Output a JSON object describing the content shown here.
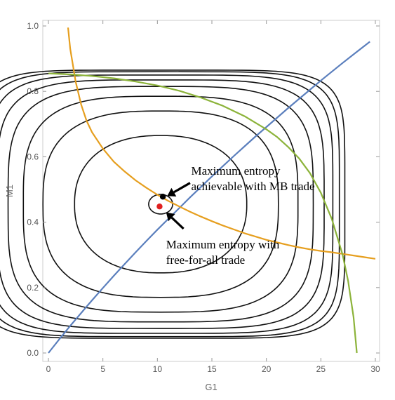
{
  "chart_data": {
    "type": "line",
    "title": "",
    "xlabel": "G1",
    "ylabel": "M1",
    "xlim": [
      0,
      30
    ],
    "ylim": [
      0,
      1.0
    ],
    "xticks": [
      0,
      5,
      10,
      15,
      20,
      25,
      30
    ],
    "yticks": [
      0.0,
      0.2,
      0.4,
      0.6,
      0.8,
      1.0
    ],
    "xtick_labels": [
      "0",
      "5",
      "10",
      "15",
      "20",
      "25",
      "30"
    ],
    "ytick_labels": [
      "0.0",
      "0.2",
      "0.4",
      "0.6",
      "0.8",
      "1.0"
    ],
    "grid": false,
    "colors": {
      "blue": "#5b7fbd",
      "orange": "#e69f1f",
      "green": "#8cb33a",
      "contour": "#111111",
      "red_point": "#e02020"
    },
    "series": [
      {
        "color": "blue",
        "x": [
          0,
          1,
          2,
          3,
          4,
          5,
          6,
          7,
          8,
          9,
          10,
          11,
          12,
          13,
          14,
          15,
          16,
          17,
          18,
          19,
          20,
          21,
          22,
          23,
          24,
          25,
          26,
          27,
          28,
          29,
          29.5
        ],
        "y": [
          0,
          0.042,
          0.083,
          0.122,
          0.161,
          0.199,
          0.236,
          0.272,
          0.308,
          0.343,
          0.377,
          0.41,
          0.443,
          0.476,
          0.508,
          0.54,
          0.571,
          0.602,
          0.632,
          0.662,
          0.691,
          0.72,
          0.749,
          0.777,
          0.805,
          0.833,
          0.86,
          0.887,
          0.913,
          0.939,
          0.952
        ]
      },
      {
        "color": "orange",
        "x": [
          1.8,
          2.0,
          2.5,
          3.0,
          3.5,
          4.0,
          5.0,
          6.0,
          7.0,
          8.0,
          9.0,
          10.0,
          11.0,
          12.0,
          13.0,
          14.0,
          15.0,
          16.0,
          17.0,
          18.0,
          19.0,
          20.0,
          21.0,
          22.0,
          23.0,
          24.0,
          25.0,
          26.0,
          27.0,
          28.0,
          29.0,
          30.0
        ],
        "y": [
          0.995,
          0.93,
          0.83,
          0.76,
          0.71,
          0.675,
          0.625,
          0.585,
          0.555,
          0.528,
          0.505,
          0.484,
          0.465,
          0.448,
          0.432,
          0.417,
          0.403,
          0.39,
          0.378,
          0.366,
          0.356,
          0.346,
          0.338,
          0.33,
          0.323,
          0.317,
          0.312,
          0.308,
          0.303,
          0.298,
          0.293,
          0.288
        ]
      },
      {
        "color": "green",
        "x": [
          0,
          2,
          4,
          6,
          8,
          10,
          12,
          14,
          16,
          18,
          20,
          21,
          22,
          23,
          24,
          25,
          26,
          27,
          27.5,
          28.0,
          28.3
        ],
        "y": [
          0.855,
          0.852,
          0.847,
          0.84,
          0.83,
          0.818,
          0.802,
          0.781,
          0.756,
          0.724,
          0.684,
          0.66,
          0.63,
          0.595,
          0.55,
          0.49,
          0.41,
          0.3,
          0.22,
          0.11,
          0.0
        ]
      }
    ],
    "contours": [
      {
        "cx": 10.3,
        "cy": 0.455,
        "rx": 1.1,
        "ry": 0.03,
        "p": 2.0
      },
      {
        "cx": 10.3,
        "cy": 0.455,
        "rx": 7.9,
        "ry": 0.21,
        "p": 2.3
      },
      {
        "cx": 10.3,
        "cy": 0.455,
        "rx": 10.8,
        "ry": 0.285,
        "p": 2.8
      },
      {
        "cx": 10.3,
        "cy": 0.455,
        "rx": 12.6,
        "ry": 0.33,
        "p": 3.3
      },
      {
        "cx": 10.3,
        "cy": 0.455,
        "rx": 14.0,
        "ry": 0.36,
        "p": 3.8
      },
      {
        "cx": 10.3,
        "cy": 0.455,
        "rx": 15.0,
        "ry": 0.38,
        "p": 4.4
      },
      {
        "cx": 10.3,
        "cy": 0.455,
        "rx": 15.8,
        "ry": 0.395,
        "p": 5.0
      },
      {
        "cx": 10.3,
        "cy": 0.455,
        "rx": 16.4,
        "ry": 0.405,
        "p": 5.6
      },
      {
        "cx": 10.3,
        "cy": 0.455,
        "rx": 16.9,
        "ry": 0.41,
        "p": 6.2
      }
    ],
    "points": [
      {
        "x": 10.5,
        "y": 0.478,
        "color": "#000000"
      },
      {
        "x": 10.2,
        "y": 0.448,
        "color": "#e02020"
      }
    ],
    "annotations": [
      {
        "lines": [
          "Maximum entropy",
          "achievable with MB trade"
        ],
        "text_x": 13.1,
        "text_y": 0.545,
        "arrow_from": [
          13.0,
          0.52
        ],
        "arrow_to": [
          10.9,
          0.48
        ]
      },
      {
        "lines": [
          "Maximum entropy with",
          "free-for-all trade"
        ],
        "text_x": 10.8,
        "text_y": 0.32,
        "arrow_from": [
          12.4,
          0.38
        ],
        "arrow_to": [
          10.8,
          0.43
        ]
      }
    ]
  }
}
